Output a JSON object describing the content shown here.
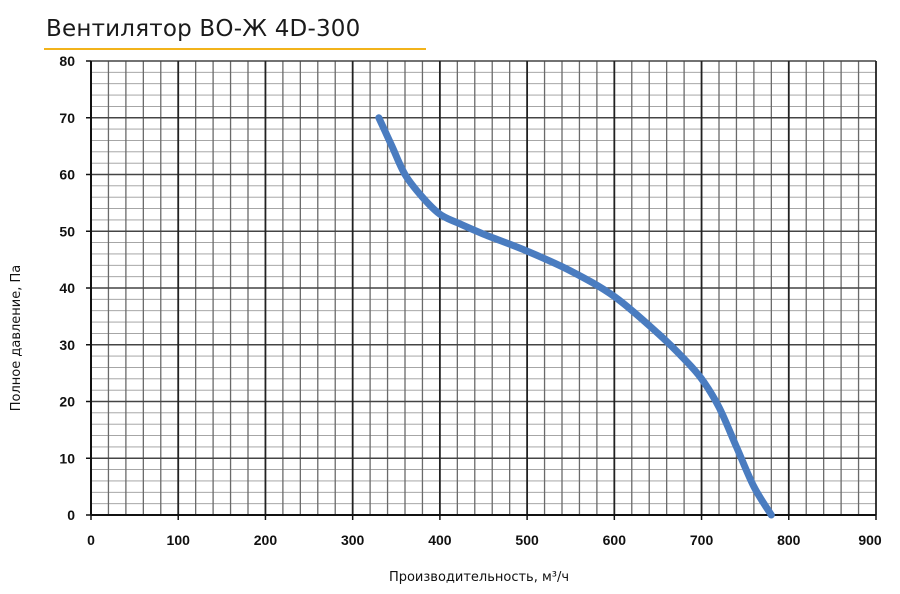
{
  "chart_data": {
    "type": "line",
    "title": "Вентилятор ВО-Ж 4D-300",
    "xlabel": "Производительность, м³/ч",
    "ylabel": "Полное давление, Па",
    "xlim": [
      0,
      900
    ],
    "ylim": [
      0,
      80
    ],
    "x_ticks": [
      0,
      100,
      200,
      300,
      400,
      500,
      600,
      700,
      800,
      900
    ],
    "x_tick_labels": [
      "0",
      "100",
      "200",
      "300",
      "400",
      "500",
      "600",
      "700",
      "800",
      "900"
    ],
    "y_ticks": [
      0,
      10,
      20,
      30,
      40,
      50,
      60,
      70,
      80
    ],
    "y_tick_labels": [
      "0",
      "10",
      "20",
      "30",
      "40",
      "50",
      "60",
      "70",
      "80"
    ],
    "grid": true,
    "x_minor_step": 20,
    "y_minor_step": 2,
    "series": [
      {
        "color": "#4a7cc0",
        "x": [
          330,
          345,
          360,
          380,
          400,
          420,
          450,
          500,
          550,
          600,
          650,
          680,
          700,
          720,
          740,
          760,
          780
        ],
        "y": [
          70,
          65,
          60,
          56,
          53,
          51.5,
          49.5,
          46.5,
          43,
          38.5,
          32,
          27.5,
          24,
          19,
          12,
          5,
          0
        ]
      }
    ]
  }
}
